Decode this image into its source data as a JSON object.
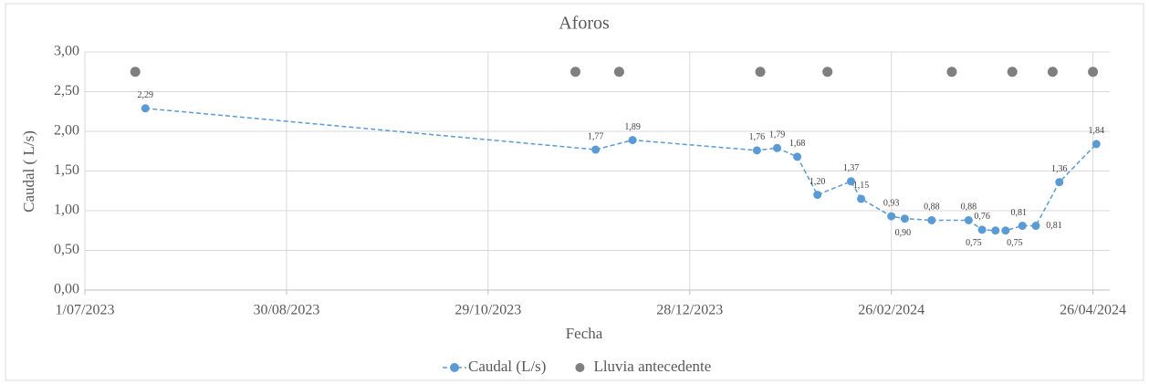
{
  "chart_data": {
    "type": "line",
    "title": "Aforos",
    "x_label": "Fecha",
    "y_label": "Caudal ( L/s)",
    "xlim": [
      "2023-07-01",
      "2024-05-01"
    ],
    "xticks": [
      {
        "value": "2023-07-01",
        "label": "1/07/2023"
      },
      {
        "value": "2023-08-30",
        "label": "30/08/2023"
      },
      {
        "value": "2023-10-29",
        "label": "29/10/2023"
      },
      {
        "value": "2023-12-28",
        "label": "28/12/2023"
      },
      {
        "value": "2024-02-26",
        "label": "26/02/2024"
      },
      {
        "value": "2024-04-26",
        "label": "26/04/2024"
      }
    ],
    "ylim": [
      0,
      3
    ],
    "yticks": [
      {
        "value": 0,
        "label": "0,00"
      },
      {
        "value": 0.5,
        "label": "0,50"
      },
      {
        "value": 1,
        "label": "1,00"
      },
      {
        "value": 1.5,
        "label": "1,50"
      },
      {
        "value": 2,
        "label": "2,00"
      },
      {
        "value": 2.5,
        "label": "2,50"
      },
      {
        "value": 3,
        "label": "3,00"
      }
    ],
    "grid": true,
    "legend": "bottom",
    "series": [
      {
        "name": "Caudal (L/s)",
        "color": "#5b9bd5",
        "line": "dashed",
        "x": [
          "2023-07-19",
          "2023-11-30",
          "2023-12-11",
          "2024-01-17",
          "2024-01-23",
          "2024-01-29",
          "2024-02-04",
          "2024-02-14",
          "2024-02-17",
          "2024-02-26",
          "2024-03-01",
          "2024-03-09",
          "2024-03-20",
          "2024-03-24",
          "2024-03-28",
          "2024-03-31",
          "2024-04-05",
          "2024-04-09",
          "2024-04-16",
          "2024-04-27"
        ],
        "values": [
          2.29,
          1.77,
          1.89,
          1.76,
          1.79,
          1.68,
          1.2,
          1.37,
          1.15,
          0.93,
          0.9,
          0.88,
          0.88,
          0.76,
          0.75,
          0.75,
          0.81,
          0.81,
          1.36,
          1.84
        ],
        "value_labels": [
          "2,29",
          "1,77",
          "1,89",
          "1,76",
          "1,79",
          "1,68",
          "1,20",
          "1,37",
          "1,15",
          "0,93",
          "0,90",
          "0,88",
          "0,88",
          "0,76",
          "0,75",
          "0,75",
          "0,81",
          "0,81",
          "1,36",
          "1,84"
        ]
      },
      {
        "name": "Lluvia antecedente",
        "color": "#7f7f7f",
        "line": "none",
        "x": [
          "2023-07-16",
          "2023-11-24",
          "2023-12-07",
          "2024-01-18",
          "2024-02-07",
          "2024-03-15",
          "2024-04-02",
          "2024-04-14",
          "2024-04-26"
        ],
        "values": [
          2.75,
          2.75,
          2.75,
          2.75,
          2.75,
          2.75,
          2.75,
          2.75,
          2.75
        ]
      }
    ]
  }
}
